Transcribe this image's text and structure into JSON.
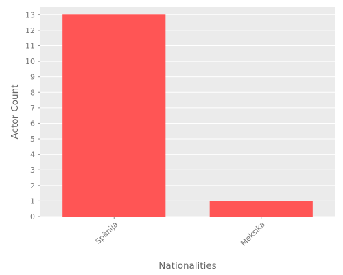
{
  "chart_data": {
    "type": "bar",
    "categories": [
      "Spānija",
      "Meksika"
    ],
    "values": [
      13,
      1
    ],
    "title": "",
    "xlabel": "Nationalities",
    "ylabel": "Actor Count",
    "ylim": [
      0,
      13.5
    ],
    "yticks": [
      0,
      1,
      2,
      3,
      4,
      5,
      6,
      7,
      8,
      9,
      10,
      11,
      12,
      13
    ],
    "grid": true,
    "legend": "none",
    "bar_color": "#FF5555",
    "background_color": "#EBEBEB",
    "grid_color": "#FFFFFF"
  }
}
